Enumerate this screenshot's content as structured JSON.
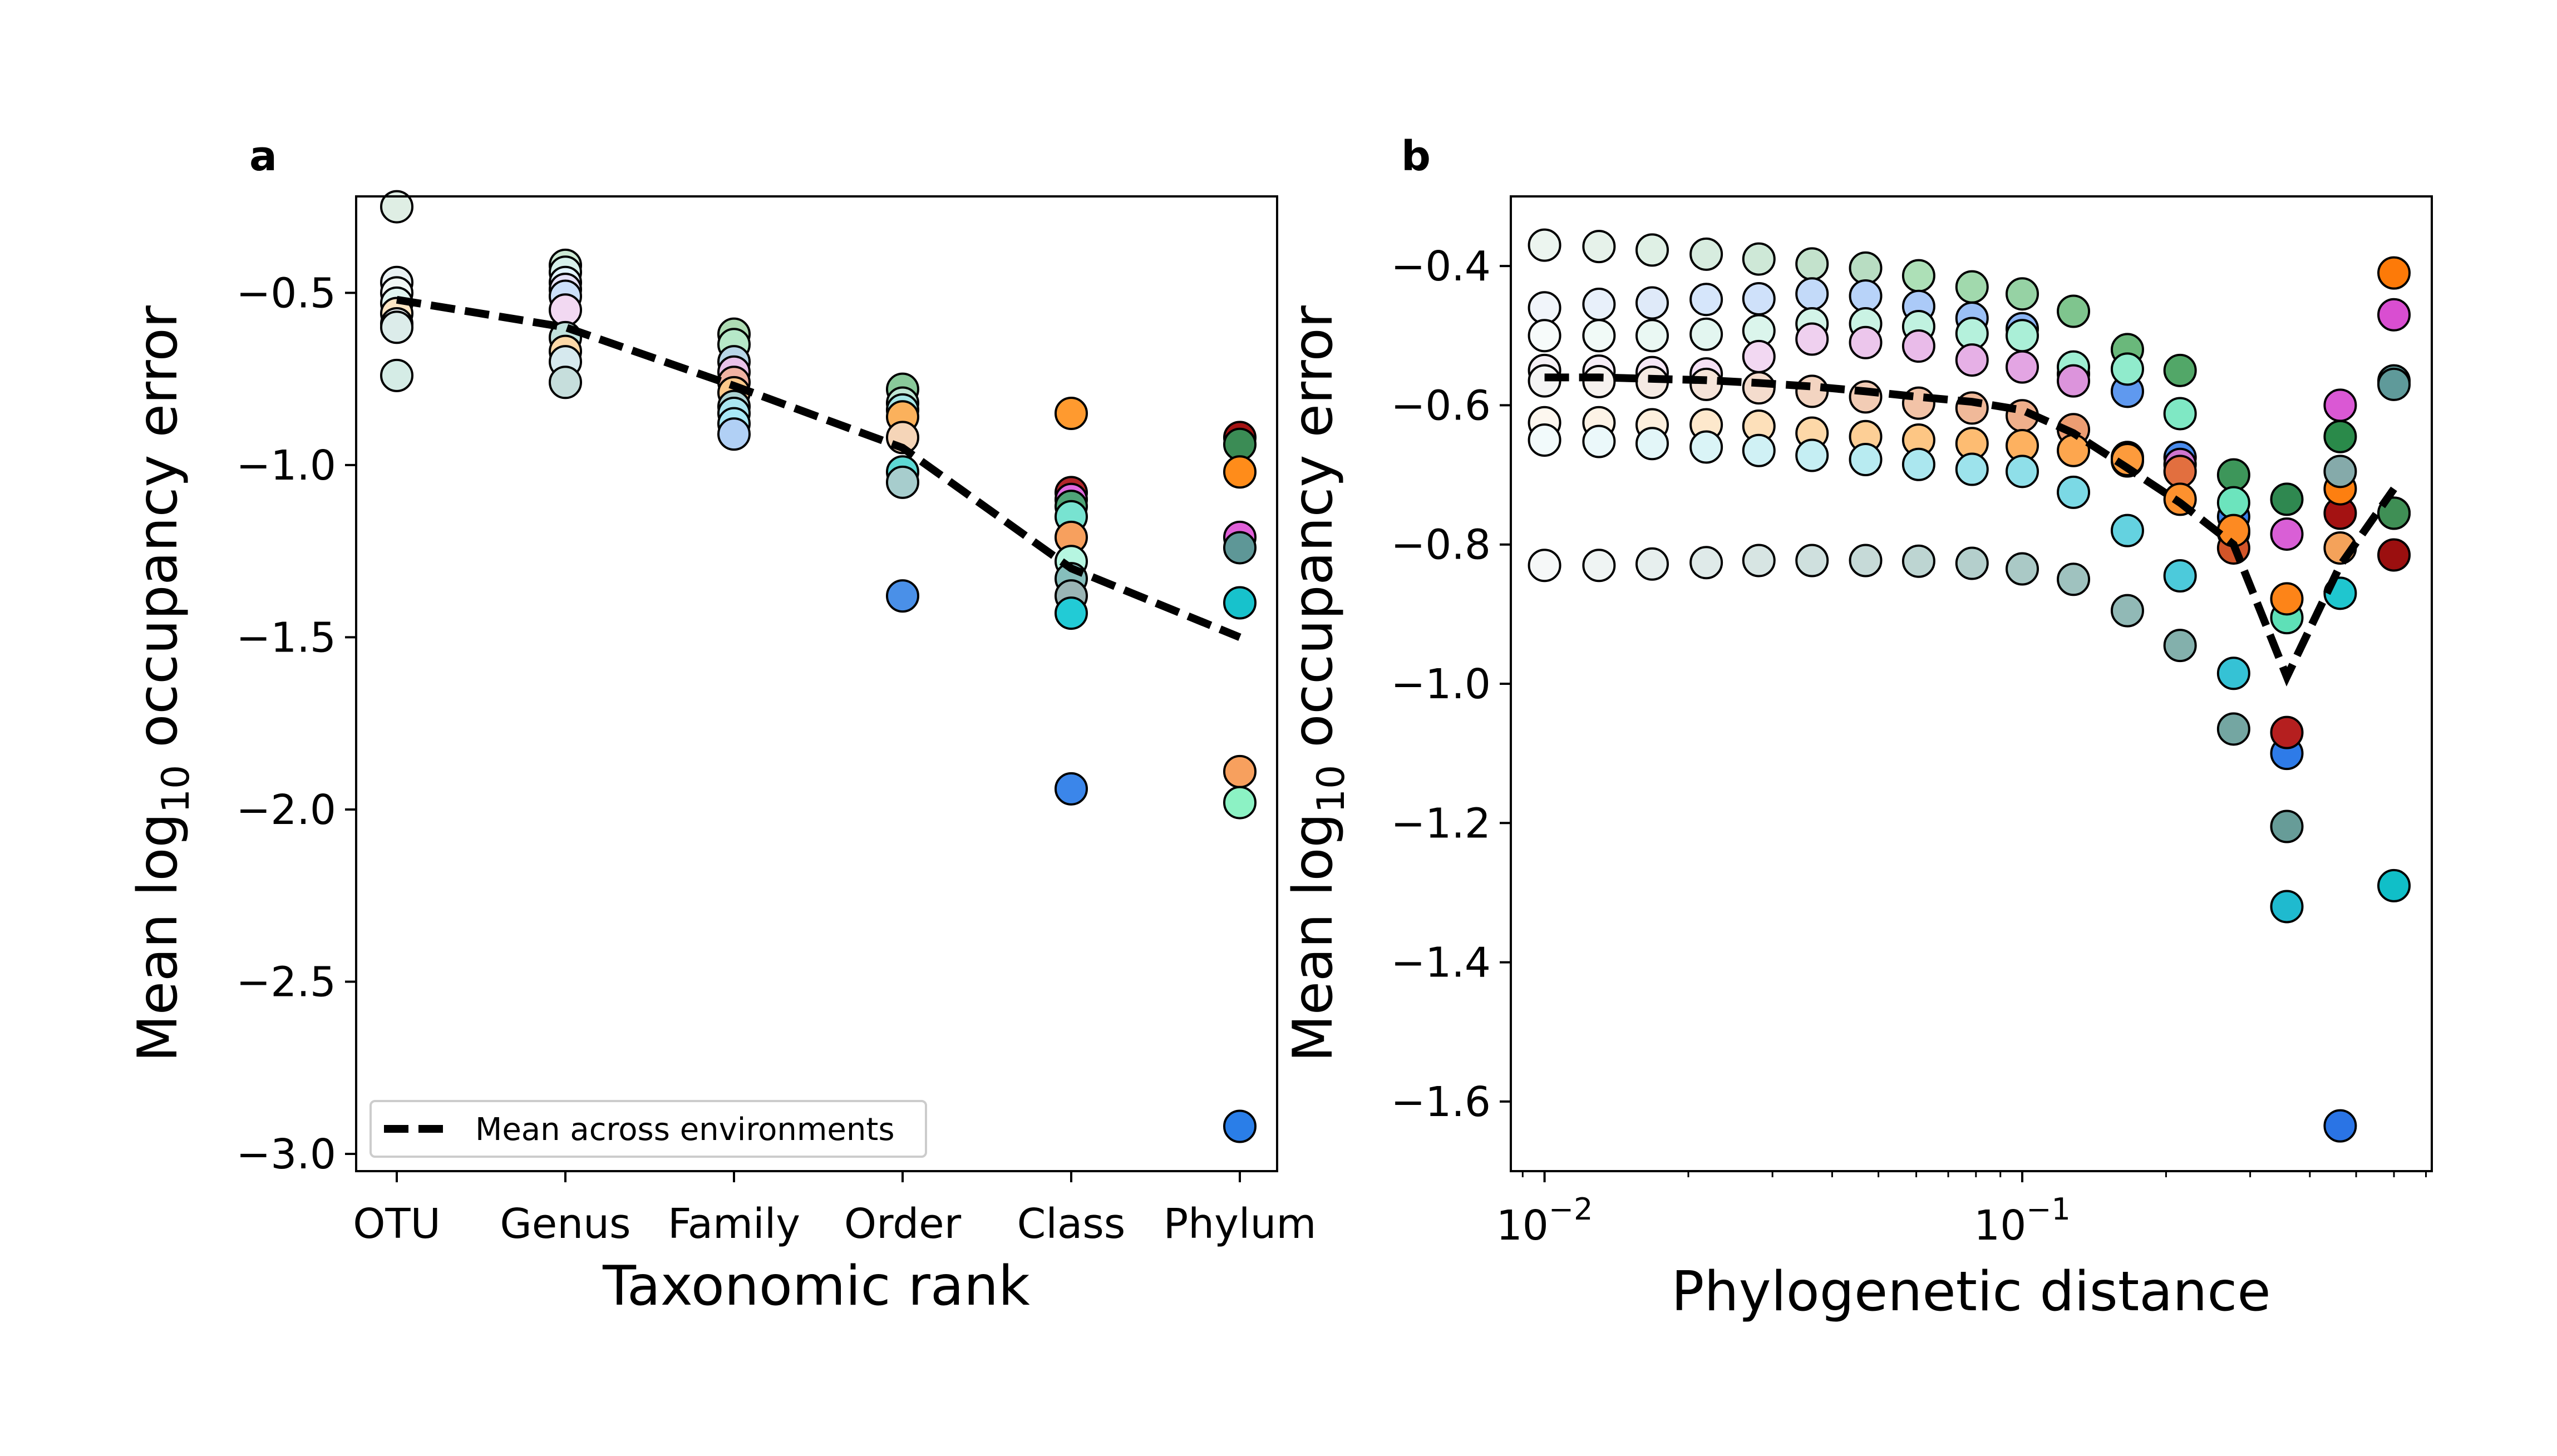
{
  "chart_data": [
    {
      "panel": "a",
      "type": "scatter",
      "xlabel": "Taxonomic rank",
      "ylabel": "Mean log10 occupancy error",
      "ylabel_main": "Mean log",
      "ylabel_sub": "10",
      "ylabel_tail": " occupancy error",
      "categories": [
        "OTU",
        "Genus",
        "Family",
        "Order",
        "Class",
        "Phylum"
      ],
      "ylim": [
        -3.05,
        -0.22
      ],
      "yticks": [
        -0.5,
        -1.0,
        -1.5,
        -2.0,
        -2.5,
        -3.0
      ],
      "ytick_labels": [
        "−0.5",
        "−1.0",
        "−1.5",
        "−2.0",
        "−2.5",
        "−3.0"
      ],
      "grid": false,
      "legend": {
        "placement": "lower-left",
        "entries": [
          "Mean across environments"
        ]
      },
      "mean_line": {
        "style": "dashed",
        "color": "#000000",
        "values": [
          -0.52,
          -0.6,
          -0.77,
          -0.95,
          -1.3,
          -1.5
        ]
      },
      "points": [
        [
          0,
          -0.25,
          "#dfeee4"
        ],
        [
          0,
          -0.47,
          "#eaf2f4"
        ],
        [
          0,
          -0.5,
          "#f2f8f5"
        ],
        [
          0,
          -0.53,
          "#e2f6f1"
        ],
        [
          0,
          -0.56,
          "#fde6c4"
        ],
        [
          0,
          -0.59,
          "#eef4f8"
        ],
        [
          0,
          -0.6,
          "#dcecea"
        ],
        [
          0,
          -0.74,
          "#d5ece6"
        ],
        [
          1,
          -0.42,
          "#cde9d4"
        ],
        [
          1,
          -0.44,
          "#d8f2ec"
        ],
        [
          1,
          -0.47,
          "#e2f4ff"
        ],
        [
          1,
          -0.49,
          "#e5e2f9"
        ],
        [
          1,
          -0.51,
          "#cce0fa"
        ],
        [
          1,
          -0.55,
          "#f2d9f2"
        ],
        [
          1,
          -0.63,
          "#c2e2dd"
        ],
        [
          1,
          -0.67,
          "#fdd9a8"
        ],
        [
          1,
          -0.7,
          "#d6e9ee"
        ],
        [
          1,
          -0.76,
          "#c6dedc"
        ],
        [
          2,
          -0.62,
          "#aedcb4"
        ],
        [
          2,
          -0.65,
          "#b6e8c8"
        ],
        [
          2,
          -0.7,
          "#b8d6e8"
        ],
        [
          2,
          -0.73,
          "#e9c2e9"
        ],
        [
          2,
          -0.76,
          "#f0b3a3"
        ],
        [
          2,
          -0.79,
          "#fcc88a"
        ],
        [
          2,
          -0.83,
          "#acd3d3"
        ],
        [
          2,
          -0.85,
          "#aae6f0"
        ],
        [
          2,
          -0.88,
          "#a8e9f6"
        ],
        [
          2,
          -0.91,
          "#b1d0f5"
        ],
        [
          3,
          -0.78,
          "#89c99a"
        ],
        [
          3,
          -0.82,
          "#bfe6d4"
        ],
        [
          3,
          -0.84,
          "#a6e6e6"
        ],
        [
          3,
          -0.86,
          "#fbb15c"
        ],
        [
          3,
          -0.92,
          "#f5d5b8"
        ],
        [
          3,
          -1.02,
          "#5ed9d4"
        ],
        [
          3,
          -1.05,
          "#a7cdcd"
        ],
        [
          3,
          -1.38,
          "#4a90e8"
        ],
        [
          4,
          -0.85,
          "#ff9a2f"
        ],
        [
          4,
          -1.08,
          "#b3262a"
        ],
        [
          4,
          -1.1,
          "#e16ae0"
        ],
        [
          4,
          -1.12,
          "#4fa478"
        ],
        [
          4,
          -1.15,
          "#78e3d1"
        ],
        [
          4,
          -1.21,
          "#f7a05e"
        ],
        [
          4,
          -1.28,
          "#b6f6e1"
        ],
        [
          4,
          -1.33,
          "#86bebc"
        ],
        [
          4,
          -1.38,
          "#9ab5b5"
        ],
        [
          4,
          -1.43,
          "#22cbd6"
        ],
        [
          4,
          -1.94,
          "#3b86ea"
        ],
        [
          5,
          -0.92,
          "#a51313"
        ],
        [
          5,
          -0.94,
          "#3b8c55"
        ],
        [
          5,
          -1.02,
          "#ff8c1a"
        ],
        [
          5,
          -1.21,
          "#e060d8"
        ],
        [
          5,
          -1.24,
          "#5e9797"
        ],
        [
          5,
          -1.4,
          "#17c2cc"
        ],
        [
          5,
          -1.89,
          "#f7a05e"
        ],
        [
          5,
          -1.98,
          "#8cf2c4"
        ],
        [
          5,
          -2.92,
          "#2a7ee8"
        ]
      ]
    },
    {
      "panel": "b",
      "type": "scatter",
      "xlabel": "Phylogenetic distance",
      "ylabel": "Mean log10 occupancy error",
      "ylabel_main": "Mean log",
      "ylabel_sub": "10",
      "ylabel_tail": " occupancy error",
      "x_scale": "log",
      "xlim": [
        0.0085,
        0.72
      ],
      "xticks": [
        0.01,
        0.1
      ],
      "xtick_base": "10",
      "xtick_exponents": [
        "−2",
        "−1"
      ],
      "ylim": [
        -1.7,
        -0.3
      ],
      "yticks": [
        -0.4,
        -0.6,
        -0.8,
        -1.0,
        -1.2,
        -1.4,
        -1.6
      ],
      "ytick_labels": [
        "−0.4",
        "−0.6",
        "−0.8",
        "−1.0",
        "−1.2",
        "−1.4",
        "−1.6"
      ],
      "grid": false,
      "x_levels": [
        0.01,
        0.013,
        0.0168,
        0.0218,
        0.0281,
        0.0363,
        0.047,
        0.0607,
        0.0785,
        0.1,
        0.128,
        0.166,
        0.214,
        0.277,
        0.358,
        0.463,
        0.6
      ],
      "mean_line": {
        "style": "dashed",
        "color": "#000000",
        "values": [
          -0.56,
          -0.56,
          -0.562,
          -0.564,
          -0.568,
          -0.573,
          -0.58,
          -0.588,
          -0.595,
          -0.607,
          -0.64,
          -0.69,
          -0.74,
          -0.8,
          -0.99,
          -0.83,
          -0.72
        ]
      },
      "series": [
        {
          "name": "",
          "values": [
            -0.37,
            -0.372,
            -0.377,
            -0.383,
            -0.39,
            -0.397,
            -0.403,
            -0.414,
            -0.43,
            -0.44,
            -0.465,
            -0.52,
            -0.55,
            -0.7,
            -0.735,
            -0.645,
            -0.755
          ],
          "colors": [
            "#ecf5ef",
            "#e6f2ea",
            "#dff0e5",
            "#d7ecdf",
            "#cee8d7",
            "#c3e2cc",
            "#b8ddc2",
            "#ade0b7",
            "#a1d9ad",
            "#96d2a4",
            "#7fc58e",
            "#6ab87b",
            "#52a768",
            "#3d965a",
            "#2f8850",
            "#2a8a4a",
            "#237a3e"
          ]
        },
        {
          "name": "",
          "values": [
            -0.46,
            -0.455,
            -0.453,
            -0.448,
            -0.447,
            -0.44,
            -0.443,
            -0.458,
            -0.475,
            -0.49,
            -0.555,
            -0.58,
            -0.675,
            -0.76,
            -1.1,
            -1.635,
            -0.565
          ],
          "colors": [
            "#f1f5fa",
            "#e8f0fa",
            "#dfeaf9",
            "#d6e6fb",
            "#cfe1fa",
            "#c3daf9",
            "#b8d3f9",
            "#abcaf8",
            "#9bc0f6",
            "#8bb5f5",
            "#78a9f3",
            "#5f99ef",
            "#4a8ced",
            "#3a83ea",
            "#2e7be8",
            "#2a74e5",
            "#5e9797"
          ]
        },
        {
          "name": "",
          "values": [
            -0.5,
            -0.5,
            -0.5,
            -0.498,
            -0.493,
            -0.483,
            -0.483,
            -0.487,
            -0.497,
            -0.5,
            -0.545,
            -0.548,
            -0.612,
            -0.74,
            -0.905,
            -0.87,
            -1.29
          ],
          "colors": [
            "#f7fbfa",
            "#f1faf7",
            "#eaf8f3",
            "#e3f6f0",
            "#dbf5ec",
            "#d3f4e8",
            "#caf3e4",
            "#c0f2e0",
            "#b5f1dc",
            "#aaefd7",
            "#9eeed2",
            "#90ebcc",
            "#7fe8c4",
            "#6ce4bd",
            "#5ee0b7",
            "#1fc6cf",
            "#10bfc8"
          ]
        },
        {
          "name": "",
          "values": [
            -0.55,
            -0.551,
            -0.553,
            -0.555,
            -0.53,
            -0.505,
            -0.51,
            -0.515,
            -0.535,
            -0.545,
            -0.565,
            -0.68,
            -0.685,
            -0.783,
            -0.785,
            -0.6,
            -0.47
          ],
          "colors": [
            "#f5f0f5",
            "#f7eef7",
            "#f6e7f6",
            "#f4e0f4",
            "#f2d8f2",
            "#efd0ef",
            "#ecc6ec",
            "#e9bbe9",
            "#e6b0e6",
            "#e3a5e3",
            "#dc94dc",
            "#d585d5",
            "#cf76cf",
            "#d968d8",
            "#d95fd6",
            "#da58d4",
            "#d94ed1"
          ]
        },
        {
          "name": "",
          "values": [
            -0.565,
            -0.566,
            -0.567,
            -0.57,
            -0.575,
            -0.58,
            -0.588,
            -0.597,
            -0.604,
            -0.615,
            -0.635,
            -0.675,
            -0.695,
            -0.805,
            -1.07,
            -0.755,
            -0.815
          ],
          "colors": [
            "#f4f4f4",
            "#f6f1ee",
            "#f5eae3",
            "#f5e3d8",
            "#f4dccd",
            "#f3d4c1",
            "#f2ccb5",
            "#f2c3a7",
            "#f0b999",
            "#efaf8b",
            "#ec9d72",
            "#e8895a",
            "#e26f3f",
            "#d35529",
            "#b51f1f",
            "#a41212",
            "#9b0f0f"
          ]
        },
        {
          "name": "",
          "values": [
            -0.625,
            -0.625,
            -0.628,
            -0.628,
            -0.63,
            -0.64,
            -0.645,
            -0.65,
            -0.655,
            -0.658,
            -0.665,
            -0.678,
            -0.735,
            -0.78,
            -0.878,
            -0.72,
            -0.41
          ],
          "colors": [
            "#fdf7ef",
            "#fdf3e6",
            "#fdefdd",
            "#fde8cc",
            "#fde0ba",
            "#fdd8a8",
            "#fdcf96",
            "#fdc684",
            "#fdbc72",
            "#fdb160",
            "#fda64e",
            "#fd9b3c",
            "#fd912e",
            "#fd8a22",
            "#fd8418",
            "#fd7f10",
            "#fd7a08"
          ]
        },
        {
          "name": "",
          "values": [
            -0.65,
            -0.652,
            -0.655,
            -0.66,
            -0.665,
            -0.672,
            -0.678,
            -0.685,
            -0.692,
            -0.695,
            -0.725,
            -0.78,
            -0.845,
            -0.985,
            -1.32,
            -0.695,
            -0.57
          ],
          "colors": [
            "#f2fafb",
            "#ebf8fa",
            "#e3f6f8",
            "#daf4f7",
            "#d0f1f5",
            "#c5eef3",
            "#b8ebf1",
            "#abe7ef",
            "#9de3ec",
            "#8fdfe9",
            "#7bd9e5",
            "#64d2e0",
            "#4ccadb",
            "#35c2d5",
            "#1fbacf",
            "#85aaaa",
            "#5f9a9a"
          ]
        },
        {
          "name": "",
          "values": [
            -0.83,
            -0.83,
            -0.828,
            -0.826,
            -0.823,
            -0.823,
            -0.823,
            -0.824,
            -0.827,
            -0.835,
            -0.85,
            -0.895,
            -0.945,
            -1.065,
            -1.205,
            -0.805,
            -0.755
          ],
          "colors": [
            "#f6f8f8",
            "#eff4f3",
            "#e7efee",
            "#dfeae9",
            "#d7e5e3",
            "#cfe0de",
            "#c6dad8",
            "#bdd5d2",
            "#b4cfcc",
            "#aac9c6",
            "#9fc2bf",
            "#91b9b6",
            "#83b0ac",
            "#74a6a2",
            "#679c98",
            "#f4a25a",
            "#3f8f55"
          ]
        }
      ]
    }
  ]
}
